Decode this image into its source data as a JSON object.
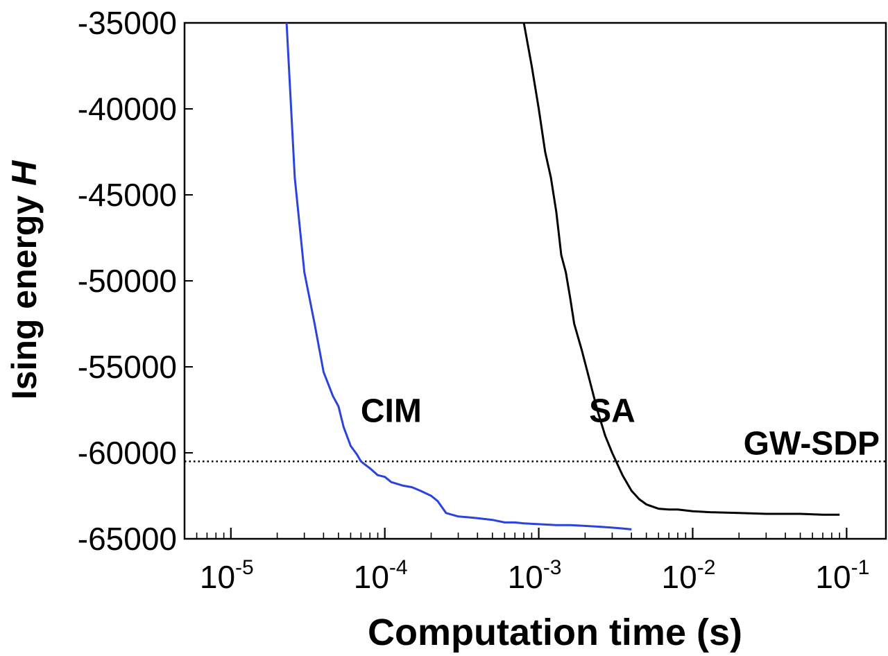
{
  "chart_data": {
    "type": "line",
    "xlabel": "Computation time (s)",
    "ylabel_main": "Ising energy ",
    "ylabel_var": "H",
    "x_scale": "log",
    "xlim": [
      5e-06,
      0.18
    ],
    "ylim": [
      -65000,
      -35000
    ],
    "x_ticks": [
      {
        "base": "10",
        "exp": "-5",
        "value": 1e-05
      },
      {
        "base": "10",
        "exp": "-4",
        "value": 0.0001
      },
      {
        "base": "10",
        "exp": "-3",
        "value": 0.001
      },
      {
        "base": "10",
        "exp": "-2",
        "value": 0.01
      },
      {
        "base": "10",
        "exp": "-1",
        "value": 0.1
      }
    ],
    "y_ticks": [
      "-35000",
      "-40000",
      "-45000",
      "-50000",
      "-55000",
      "-60000",
      "-65000"
    ],
    "grid": false,
    "series": [
      {
        "name": "CIM",
        "color": "#2b43dd",
        "points": [
          [
            2.3e-05,
            -35000
          ],
          [
            2.6e-05,
            -44000
          ],
          [
            3e-05,
            -49500
          ],
          [
            3.5e-05,
            -52500
          ],
          [
            4e-05,
            -55300
          ],
          [
            4.6e-05,
            -56700
          ],
          [
            5e-05,
            -57300
          ],
          [
            5.4e-05,
            -58500
          ],
          [
            6e-05,
            -59600
          ],
          [
            6.6e-05,
            -60100
          ],
          [
            7e-05,
            -60500
          ],
          [
            8e-05,
            -60900
          ],
          [
            9e-05,
            -61300
          ],
          [
            0.0001,
            -61400
          ],
          [
            0.00011,
            -61700
          ],
          [
            0.00013,
            -61900
          ],
          [
            0.00015,
            -62000
          ],
          [
            0.00017,
            -62200
          ],
          [
            0.0002,
            -62500
          ],
          [
            0.00022,
            -62800
          ],
          [
            0.00025,
            -63500
          ],
          [
            0.0003,
            -63700
          ],
          [
            0.00035,
            -63750
          ],
          [
            0.0004,
            -63800
          ],
          [
            0.0005,
            -63900
          ],
          [
            0.0006,
            -64050
          ],
          [
            0.0007,
            -64050
          ],
          [
            0.0008,
            -64100
          ],
          [
            0.001,
            -64150
          ],
          [
            0.0013,
            -64200
          ],
          [
            0.0016,
            -64200
          ],
          [
            0.002,
            -64250
          ],
          [
            0.0025,
            -64300
          ],
          [
            0.003,
            -64350
          ],
          [
            0.0035,
            -64400
          ],
          [
            0.004,
            -64450
          ]
        ]
      },
      {
        "name": "SA",
        "color": "#000000",
        "points": [
          [
            0.0008,
            -35000
          ],
          [
            0.0009,
            -37500
          ],
          [
            0.001,
            -40000
          ],
          [
            0.0011,
            -42500
          ],
          [
            0.0012,
            -44000
          ],
          [
            0.0013,
            -46000
          ],
          [
            0.0014,
            -48500
          ],
          [
            0.0015,
            -49500
          ],
          [
            0.0016,
            -51000
          ],
          [
            0.0017,
            -52500
          ],
          [
            0.0019,
            -54000
          ],
          [
            0.0021,
            -55500
          ],
          [
            0.0024,
            -57500
          ],
          [
            0.0027,
            -59000
          ],
          [
            0.003,
            -60000
          ],
          [
            0.0035,
            -61300
          ],
          [
            0.004,
            -62200
          ],
          [
            0.0045,
            -62700
          ],
          [
            0.005,
            -63000
          ],
          [
            0.006,
            -63250
          ],
          [
            0.007,
            -63300
          ],
          [
            0.008,
            -63300
          ],
          [
            0.01,
            -63400
          ],
          [
            0.013,
            -63450
          ],
          [
            0.02,
            -63500
          ],
          [
            0.03,
            -63550
          ],
          [
            0.05,
            -63550
          ],
          [
            0.07,
            -63600
          ],
          [
            0.09,
            -63600
          ]
        ]
      }
    ],
    "reference_line": {
      "label": "GW-SDP",
      "y": -60500,
      "style": "dotted",
      "color": "#000000"
    },
    "annotations": [
      {
        "text": "CIM",
        "x": 0.00011,
        "y": -57400
      },
      {
        "text": "SA",
        "x": 0.003,
        "y": -57400
      }
    ]
  }
}
